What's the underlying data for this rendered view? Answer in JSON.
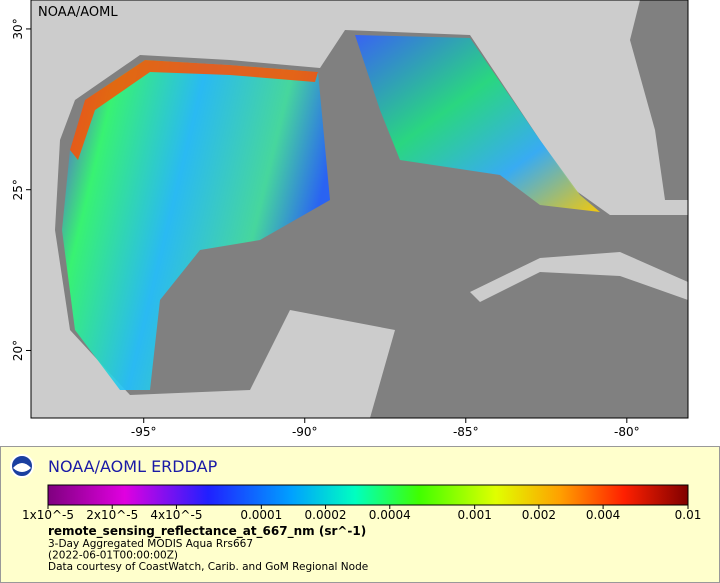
{
  "map": {
    "watermark": "NOAA/AOML",
    "xlim": [
      -98.5,
      -78.1
    ],
    "ylim": [
      17.9,
      30.9
    ],
    "xticks": [
      {
        "value": -95,
        "label": "-95°"
      },
      {
        "value": -90,
        "label": "-90°"
      },
      {
        "value": -85,
        "label": "-85°"
      },
      {
        "value": -80,
        "label": "-80°"
      }
    ],
    "yticks": [
      {
        "value": 20,
        "label": "20°"
      },
      {
        "value": 25,
        "label": "25°"
      },
      {
        "value": 30,
        "label": "30°"
      }
    ]
  },
  "legend": {
    "title": "NOAA/AOML ERDDAP",
    "colorbar": {
      "scale": "log",
      "lim": [
        1e-05,
        0.01
      ],
      "ticks": [
        {
          "value": 1e-05,
          "label": "1x10^-5"
        },
        {
          "value": 2e-05,
          "label": "2x10^-5"
        },
        {
          "value": 4e-05,
          "label": "4x10^-5"
        },
        0.0001,
        0.0002,
        0.0004,
        0.001,
        0.002,
        0.004,
        0.01
      ]
    },
    "variable": "remote_sensing_reflectance_at_667_nm (sr^-1)",
    "lines": [
      "3-Day Aggregated MODIS Aqua Rrs667",
      "(2022-06-01T00:00:00Z)",
      "Data courtesy of CoastWatch, Carib. and GoM Regional Node"
    ]
  }
}
